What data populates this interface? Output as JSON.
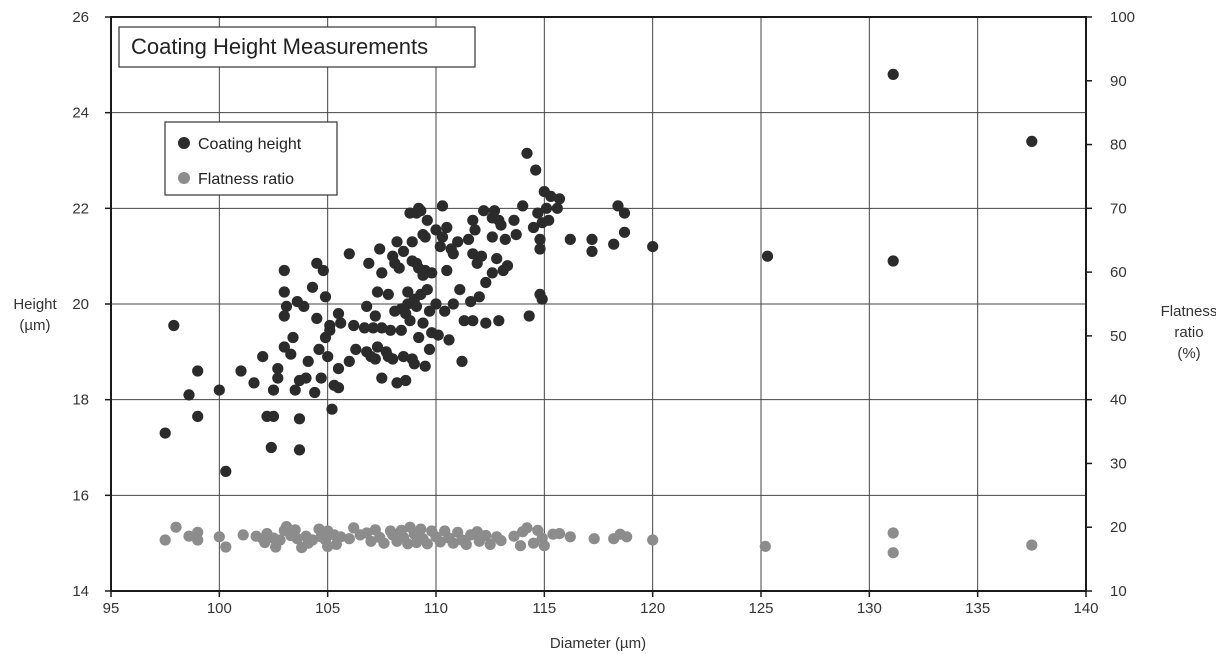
{
  "chart_data": {
    "type": "scatter",
    "title": "Coating Height Measurements",
    "xlabel": "Diameter (µm)",
    "ylabel_lines": [
      "Height",
      "(µm)"
    ],
    "y2label_lines": [
      "Flatness",
      "ratio",
      "(%)"
    ],
    "xlim": [
      95,
      140
    ],
    "ylim": [
      14,
      26
    ],
    "y2lim": [
      10,
      100
    ],
    "x_ticks": [
      95,
      100,
      105,
      110,
      115,
      120,
      125,
      130,
      135,
      140
    ],
    "y_ticks": [
      14,
      16,
      18,
      20,
      22,
      24,
      26
    ],
    "y2_ticks": [
      10,
      20,
      30,
      40,
      50,
      60,
      70,
      80,
      90,
      100
    ],
    "grid": true,
    "legend_position": "upper-left",
    "series": [
      {
        "name": "Coating height",
        "axis": "left",
        "color": "#2b2b2b",
        "points": [
          [
            97.5,
            17.3
          ],
          [
            97.9,
            19.55
          ],
          [
            98.6,
            18.1
          ],
          [
            99.0,
            18.6
          ],
          [
            99.0,
            17.65
          ],
          [
            100.0,
            18.2
          ],
          [
            100.3,
            16.5
          ],
          [
            101.0,
            18.6
          ],
          [
            101.6,
            18.35
          ],
          [
            102.0,
            18.9
          ],
          [
            102.2,
            17.65
          ],
          [
            102.4,
            17.0
          ],
          [
            102.5,
            17.65
          ],
          [
            102.5,
            18.2
          ],
          [
            102.7,
            18.65
          ],
          [
            102.7,
            18.45
          ],
          [
            103.0,
            20.7
          ],
          [
            103.0,
            20.25
          ],
          [
            103.0,
            19.75
          ],
          [
            103.0,
            19.1
          ],
          [
            103.1,
            19.95
          ],
          [
            103.3,
            18.95
          ],
          [
            103.4,
            19.3
          ],
          [
            103.5,
            18.2
          ],
          [
            103.6,
            20.05
          ],
          [
            103.7,
            18.4
          ],
          [
            103.7,
            17.6
          ],
          [
            103.7,
            16.95
          ],
          [
            103.9,
            19.95
          ],
          [
            104.0,
            18.45
          ],
          [
            104.1,
            18.8
          ],
          [
            104.3,
            20.35
          ],
          [
            104.4,
            18.15
          ],
          [
            104.5,
            20.85
          ],
          [
            104.5,
            19.7
          ],
          [
            104.6,
            19.05
          ],
          [
            104.7,
            18.45
          ],
          [
            104.8,
            20.7
          ],
          [
            104.9,
            20.15
          ],
          [
            104.9,
            19.3
          ],
          [
            105.0,
            18.9
          ],
          [
            105.1,
            19.55
          ],
          [
            105.1,
            19.45
          ],
          [
            105.2,
            17.8
          ],
          [
            105.3,
            18.3
          ],
          [
            105.5,
            19.8
          ],
          [
            105.5,
            18.65
          ],
          [
            105.5,
            18.25
          ],
          [
            105.6,
            19.6
          ],
          [
            106.0,
            21.05
          ],
          [
            106.0,
            18.8
          ],
          [
            106.2,
            19.55
          ],
          [
            106.3,
            19.05
          ],
          [
            106.7,
            19.5
          ],
          [
            106.8,
            19.95
          ],
          [
            106.8,
            19.0
          ],
          [
            106.9,
            20.85
          ],
          [
            107.0,
            18.9
          ],
          [
            107.1,
            19.5
          ],
          [
            107.2,
            19.75
          ],
          [
            107.2,
            18.85
          ],
          [
            107.3,
            20.25
          ],
          [
            107.3,
            19.1
          ],
          [
            107.4,
            21.15
          ],
          [
            107.5,
            20.65
          ],
          [
            107.5,
            19.5
          ],
          [
            107.5,
            18.45
          ],
          [
            107.7,
            19.0
          ],
          [
            107.8,
            20.2
          ],
          [
            107.8,
            18.9
          ],
          [
            107.9,
            19.45
          ],
          [
            108.0,
            21.0
          ],
          [
            108.0,
            18.85
          ],
          [
            108.1,
            20.85
          ],
          [
            108.1,
            19.85
          ],
          [
            108.2,
            21.3
          ],
          [
            108.2,
            18.35
          ],
          [
            108.3,
            20.75
          ],
          [
            108.4,
            19.9
          ],
          [
            108.4,
            19.45
          ],
          [
            108.5,
            21.1
          ],
          [
            108.5,
            18.9
          ],
          [
            108.6,
            19.8
          ],
          [
            108.6,
            18.4
          ],
          [
            108.7,
            20.25
          ],
          [
            108.7,
            20.0
          ],
          [
            108.8,
            21.9
          ],
          [
            108.8,
            19.65
          ],
          [
            108.9,
            21.3
          ],
          [
            108.9,
            20.9
          ],
          [
            108.9,
            18.85
          ],
          [
            109.0,
            20.1
          ],
          [
            109.0,
            18.75
          ],
          [
            109.1,
            21.9
          ],
          [
            109.1,
            20.85
          ],
          [
            109.1,
            19.95
          ],
          [
            109.2,
            22.0
          ],
          [
            109.2,
            20.75
          ],
          [
            109.2,
            19.3
          ],
          [
            109.3,
            21.95
          ],
          [
            109.3,
            20.2
          ],
          [
            109.4,
            21.45
          ],
          [
            109.4,
            20.6
          ],
          [
            109.4,
            19.6
          ],
          [
            109.5,
            21.4
          ],
          [
            109.5,
            20.7
          ],
          [
            109.5,
            18.7
          ],
          [
            109.6,
            21.75
          ],
          [
            109.6,
            20.3
          ],
          [
            109.7,
            19.85
          ],
          [
            109.7,
            19.05
          ],
          [
            109.8,
            20.65
          ],
          [
            109.8,
            19.4
          ],
          [
            110.0,
            21.55
          ],
          [
            110.0,
            20.0
          ],
          [
            110.1,
            19.35
          ],
          [
            110.2,
            21.2
          ],
          [
            110.3,
            22.05
          ],
          [
            110.3,
            21.4
          ],
          [
            110.4,
            19.85
          ],
          [
            110.5,
            21.6
          ],
          [
            110.5,
            20.7
          ],
          [
            110.6,
            19.25
          ],
          [
            110.7,
            21.15
          ],
          [
            110.8,
            21.05
          ],
          [
            110.8,
            20.0
          ],
          [
            111.0,
            21.3
          ],
          [
            111.1,
            20.3
          ],
          [
            111.2,
            18.8
          ],
          [
            111.3,
            19.65
          ],
          [
            111.5,
            21.35
          ],
          [
            111.6,
            20.05
          ],
          [
            111.7,
            21.75
          ],
          [
            111.7,
            21.05
          ],
          [
            111.7,
            19.65
          ],
          [
            111.8,
            21.55
          ],
          [
            111.9,
            20.85
          ],
          [
            112.0,
            20.15
          ],
          [
            112.1,
            21.0
          ],
          [
            112.2,
            21.95
          ],
          [
            112.3,
            19.6
          ],
          [
            112.3,
            20.45
          ],
          [
            112.6,
            21.8
          ],
          [
            112.6,
            21.4
          ],
          [
            112.6,
            20.65
          ],
          [
            112.7,
            21.95
          ],
          [
            112.8,
            20.95
          ],
          [
            112.9,
            19.65
          ],
          [
            112.9,
            21.75
          ],
          [
            113.0,
            21.65
          ],
          [
            113.1,
            20.7
          ],
          [
            113.2,
            21.35
          ],
          [
            113.3,
            20.8
          ],
          [
            113.6,
            21.75
          ],
          [
            113.7,
            21.45
          ],
          [
            114.0,
            22.05
          ],
          [
            114.2,
            23.15
          ],
          [
            114.3,
            19.75
          ],
          [
            114.5,
            21.6
          ],
          [
            114.6,
            22.8
          ],
          [
            114.7,
            21.9
          ],
          [
            114.8,
            20.2
          ],
          [
            114.8,
            21.35
          ],
          [
            114.8,
            21.15
          ],
          [
            114.9,
            21.7
          ],
          [
            114.9,
            20.1
          ],
          [
            115.0,
            22.35
          ],
          [
            115.1,
            22.0
          ],
          [
            115.2,
            21.75
          ],
          [
            115.3,
            22.25
          ],
          [
            115.6,
            22.0
          ],
          [
            115.7,
            22.2
          ],
          [
            116.2,
            21.35
          ],
          [
            117.2,
            21.35
          ],
          [
            117.2,
            21.1
          ],
          [
            118.2,
            21.25
          ],
          [
            118.4,
            22.05
          ],
          [
            118.7,
            21.9
          ],
          [
            118.7,
            21.5
          ],
          [
            120.0,
            21.2
          ],
          [
            125.3,
            21.0
          ],
          [
            131.1,
            24.8
          ],
          [
            131.1,
            20.9
          ],
          [
            137.5,
            23.4
          ]
        ]
      },
      {
        "name": "Flatness ratio",
        "axis": "right",
        "color": "#8c8c8c",
        "points": [
          [
            97.5,
            18.0
          ],
          [
            98.0,
            20.0
          ],
          [
            98.6,
            18.6
          ],
          [
            99.0,
            18.0
          ],
          [
            99.0,
            19.2
          ],
          [
            100.0,
            18.5
          ],
          [
            100.3,
            16.9
          ],
          [
            101.1,
            18.8
          ],
          [
            101.7,
            18.6
          ],
          [
            102.0,
            18.2
          ],
          [
            102.1,
            17.6
          ],
          [
            102.2,
            19.0
          ],
          [
            102.5,
            18.3
          ],
          [
            102.6,
            16.9
          ],
          [
            102.8,
            18.0
          ],
          [
            103.0,
            19.5
          ],
          [
            103.1,
            20.1
          ],
          [
            103.3,
            18.7
          ],
          [
            103.5,
            19.6
          ],
          [
            103.6,
            18.2
          ],
          [
            103.8,
            16.8
          ],
          [
            104.0,
            18.6
          ],
          [
            104.1,
            17.5
          ],
          [
            104.3,
            18.0
          ],
          [
            104.6,
            19.7
          ],
          [
            104.7,
            18.5
          ],
          [
            104.9,
            18.0
          ],
          [
            105.0,
            19.4
          ],
          [
            105.0,
            17.0
          ],
          [
            105.3,
            18.8
          ],
          [
            105.4,
            17.3
          ],
          [
            105.6,
            18.5
          ],
          [
            106.0,
            18.2
          ],
          [
            106.2,
            19.9
          ],
          [
            106.5,
            18.8
          ],
          [
            106.8,
            19.1
          ],
          [
            107.0,
            17.8
          ],
          [
            107.2,
            19.6
          ],
          [
            107.4,
            18.4
          ],
          [
            107.6,
            17.5
          ],
          [
            107.9,
            19.4
          ],
          [
            108.0,
            18.8
          ],
          [
            108.2,
            17.8
          ],
          [
            108.4,
            19.5
          ],
          [
            108.5,
            18.4
          ],
          [
            108.7,
            17.4
          ],
          [
            108.8,
            20.0
          ],
          [
            109.0,
            18.9
          ],
          [
            109.1,
            17.6
          ],
          [
            109.3,
            19.7
          ],
          [
            109.4,
            18.2
          ],
          [
            109.6,
            17.4
          ],
          [
            109.8,
            19.4
          ],
          [
            110.0,
            18.5
          ],
          [
            110.2,
            17.7
          ],
          [
            110.4,
            19.4
          ],
          [
            110.6,
            18.3
          ],
          [
            110.8,
            17.5
          ],
          [
            111.0,
            19.2
          ],
          [
            111.2,
            18.0
          ],
          [
            111.4,
            17.3
          ],
          [
            111.6,
            18.8
          ],
          [
            111.9,
            19.3
          ],
          [
            112.0,
            17.8
          ],
          [
            112.3,
            18.7
          ],
          [
            112.5,
            17.3
          ],
          [
            112.8,
            18.5
          ],
          [
            113.0,
            17.9
          ],
          [
            113.6,
            18.6
          ],
          [
            113.9,
            17.1
          ],
          [
            114.0,
            19.3
          ],
          [
            114.2,
            19.9
          ],
          [
            114.5,
            17.5
          ],
          [
            114.7,
            19.5
          ],
          [
            114.9,
            18.3
          ],
          [
            115.0,
            17.1
          ],
          [
            115.4,
            18.9
          ],
          [
            115.7,
            19.0
          ],
          [
            116.2,
            18.5
          ],
          [
            117.3,
            18.2
          ],
          [
            118.2,
            18.2
          ],
          [
            118.5,
            18.9
          ],
          [
            118.8,
            18.5
          ],
          [
            120.0,
            18.0
          ],
          [
            125.2,
            17.0
          ],
          [
            131.1,
            19.1
          ],
          [
            131.1,
            16.0
          ],
          [
            137.5,
            17.2
          ]
        ]
      }
    ]
  }
}
